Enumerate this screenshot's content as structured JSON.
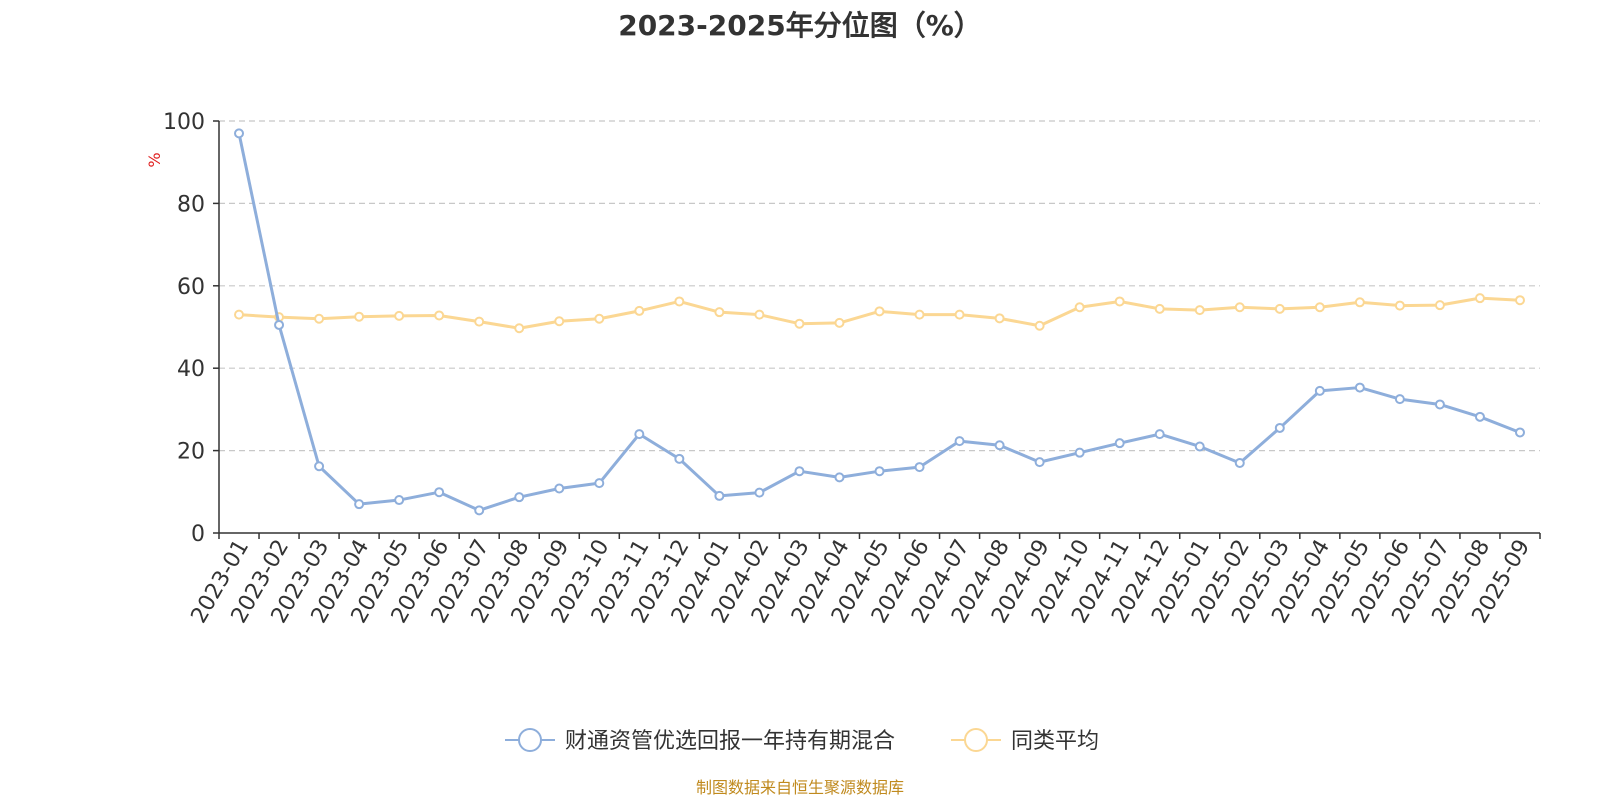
{
  "title": "2023-2025年分位图（%）",
  "source": "制图数据来自恒生聚源数据库",
  "chart_data": {
    "type": "line",
    "title": "2023-2025年分位图（%）",
    "ylabel": "%",
    "ylim": [
      0,
      100
    ],
    "yticks": [
      0,
      20,
      40,
      60,
      80,
      100
    ],
    "grid": true,
    "legend_position": "bottom",
    "categories": [
      "2023-01",
      "2023-02",
      "2023-03",
      "2023-04",
      "2023-05",
      "2023-06",
      "2023-07",
      "2023-08",
      "2023-09",
      "2023-10",
      "2023-11",
      "2023-12",
      "2024-01",
      "2024-02",
      "2024-03",
      "2024-04",
      "2024-05",
      "2024-06",
      "2024-07",
      "2024-08",
      "2024-09",
      "2024-10",
      "2024-11",
      "2024-12",
      "2025-01",
      "2025-02",
      "2025-03",
      "2025-04",
      "2025-05",
      "2025-06",
      "2025-07",
      "2025-08",
      "2025-09"
    ],
    "series": [
      {
        "name": "财通资管优选回报一年持有期混合",
        "color": "#8eaedb",
        "values": [
          97,
          50.5,
          16.2,
          7,
          8,
          9.9,
          5.5,
          8.7,
          10.8,
          12.1,
          24,
          18,
          9,
          9.8,
          15,
          13.5,
          15,
          16,
          22.3,
          21.3,
          17.2,
          19.5,
          21.8,
          24,
          21,
          17,
          25.5,
          34.5,
          35.3,
          32.5,
          31.2,
          28.2,
          24.4
        ]
      },
      {
        "name": "同类平均",
        "color": "#fbd793",
        "values": [
          53,
          52.4,
          52,
          52.5,
          52.7,
          52.8,
          51.3,
          49.7,
          51.4,
          52,
          53.9,
          56.2,
          53.6,
          53,
          50.8,
          51,
          53.8,
          53,
          53,
          52.1,
          50.3,
          54.8,
          56.2,
          54.4,
          54.1,
          54.8,
          54.4,
          54.8,
          56,
          55.2,
          55.3,
          57,
          56.5
        ]
      }
    ]
  }
}
